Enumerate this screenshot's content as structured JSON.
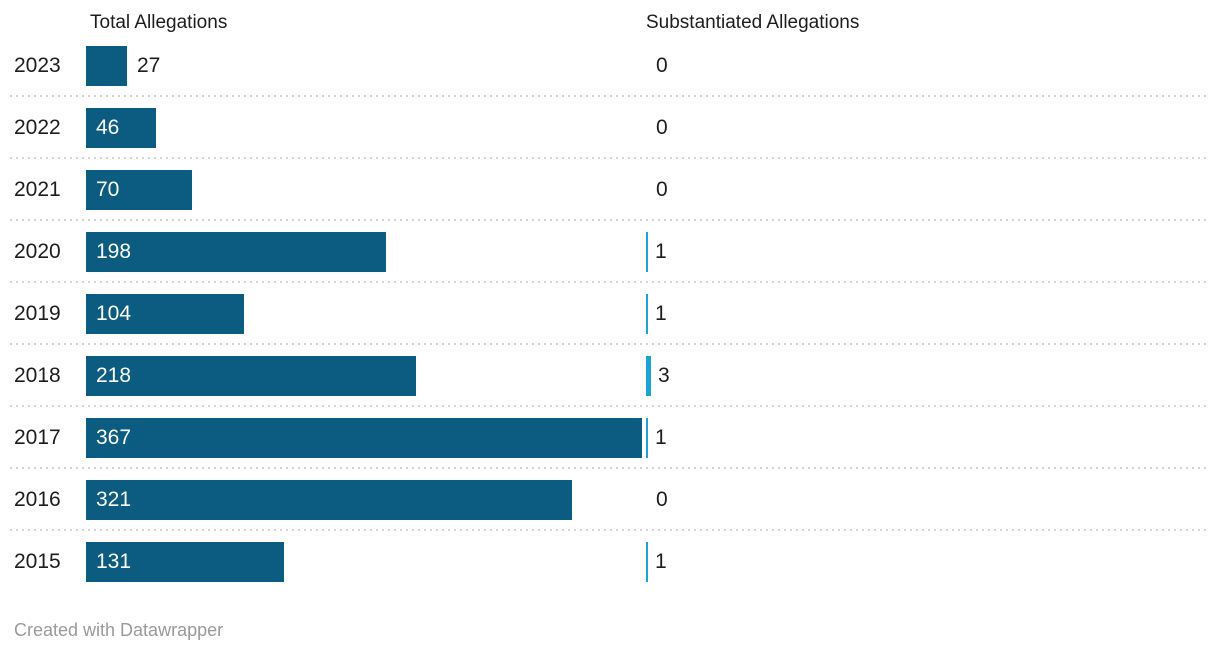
{
  "chart_data": {
    "type": "bar",
    "orientation": "horizontal",
    "title": "",
    "categories": [
      "2023",
      "2022",
      "2021",
      "2020",
      "2019",
      "2018",
      "2017",
      "2016",
      "2015"
    ],
    "series": [
      {
        "name": "Total Allegations",
        "values": [
          27,
          46,
          70,
          198,
          104,
          218,
          367,
          321,
          131
        ],
        "color": "#0b5c80"
      },
      {
        "name": "Substantiated Allegations",
        "values": [
          0,
          0,
          0,
          1,
          1,
          3,
          1,
          0,
          1
        ],
        "color": "#1ca3d4"
      }
    ],
    "xlim": [
      0,
      367
    ],
    "value_labels": true,
    "legend": "column headers above columns",
    "grid": "dotted horizontal row separators"
  },
  "footer": {
    "credit": "Created with Datawrapper"
  },
  "colors": {
    "total_bar": "#0b5c80",
    "substantiated_bar": "#1ca3d4",
    "text": "#1d1d1d",
    "value_label_inside": "#ffffff",
    "separator": "#d2d2d2",
    "credit_text": "#9a9a9a",
    "background": "#ffffff"
  }
}
